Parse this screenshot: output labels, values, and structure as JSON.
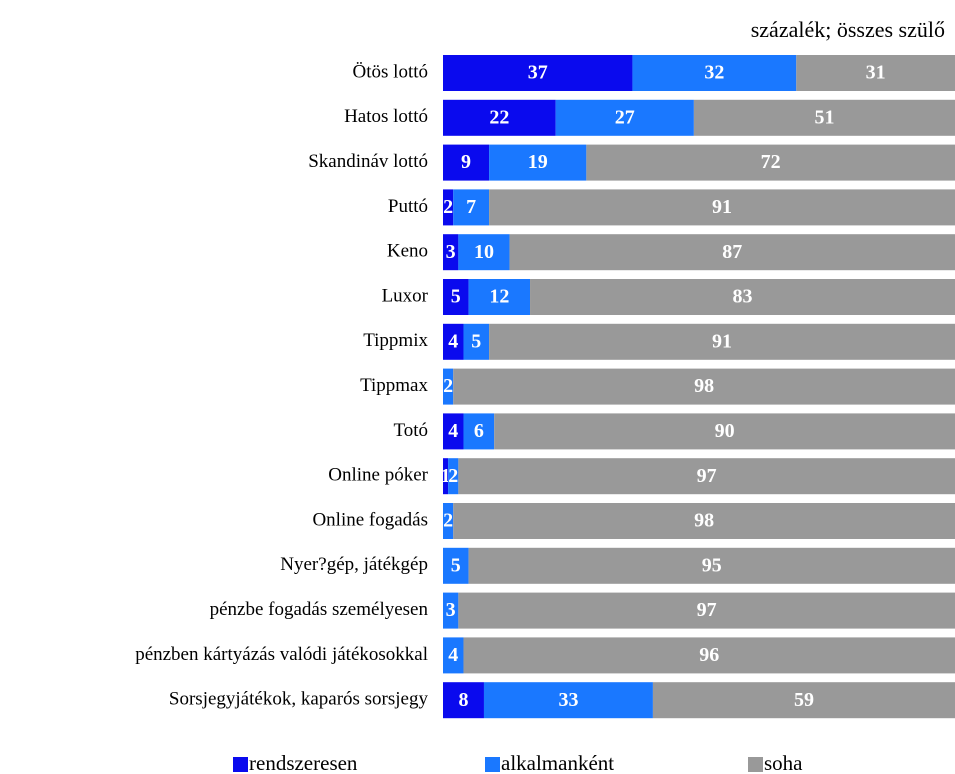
{
  "chart_data": {
    "type": "stacked-bar-horizontal",
    "subtitle": "százalék; összes szülő",
    "categories": [
      "Ötös lottó",
      "Hatos lottó",
      "Skandináv lottó",
      "Puttó",
      "Keno",
      "Luxor",
      "Tippmix",
      "Tippmax",
      "Totó",
      "Online póker",
      "Online fogadás",
      "Nyer?gép,  játékgép",
      "pénzbe fogadás személyesen",
      "pénzben kártyázás  valódi játékosokkal",
      "Sorsjegyjátékok,  kaparós sorsjegy"
    ],
    "series": [
      {
        "name": "rendszeresen",
        "color": "#0a0aee",
        "values": [
          37,
          22,
          9,
          2,
          3,
          5,
          4,
          0,
          4,
          1,
          0,
          0,
          0,
          0,
          8
        ]
      },
      {
        "name": "alkalmanként",
        "color": "#1a78ff",
        "values": [
          32,
          27,
          19,
          7,
          10,
          12,
          5,
          2,
          6,
          2,
          2,
          5,
          3,
          4,
          33
        ]
      },
      {
        "name": "soha",
        "color": "#999999",
        "values": [
          31,
          51,
          72,
          91,
          87,
          83,
          91,
          98,
          90,
          97,
          98,
          95,
          97,
          96,
          59
        ]
      }
    ],
    "xlim": [
      0,
      100
    ]
  }
}
